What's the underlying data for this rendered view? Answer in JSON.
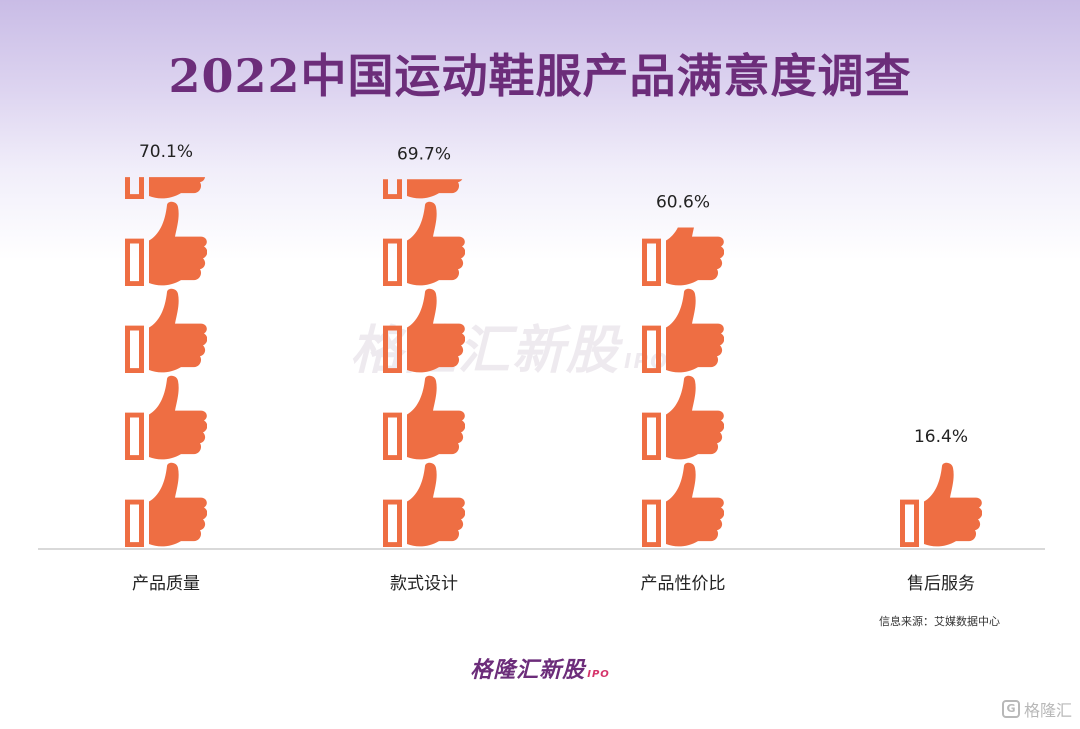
{
  "title": "2022中国运动鞋服产品满意度调查",
  "chart_data": {
    "type": "bar",
    "categories": [
      "产品质量",
      "款式设计",
      "产品性价比",
      "售后服务"
    ],
    "values": [
      70.1,
      69.7,
      60.6,
      16.4
    ],
    "value_labels": [
      "70.1%",
      "69.7%",
      "60.6%",
      "16.4%"
    ],
    "unit": "%",
    "icon": "thumbs-up-icon",
    "icon_unit_value": 16.4,
    "bar_color": "#ee6e43",
    "axis_color": "#d9d9d9",
    "grid": false,
    "legend": "none"
  },
  "source": "信息来源：艾媒数据中心",
  "watermark": {
    "text": "格隆汇新股",
    "suffix": "IPO"
  },
  "brand": {
    "text": "格隆汇新股",
    "suffix": "IPO"
  },
  "corner_logo": {
    "mark": "G",
    "text": "格隆汇"
  },
  "colors": {
    "title": "#6c2d7a",
    "accent": "#ee6e43"
  }
}
